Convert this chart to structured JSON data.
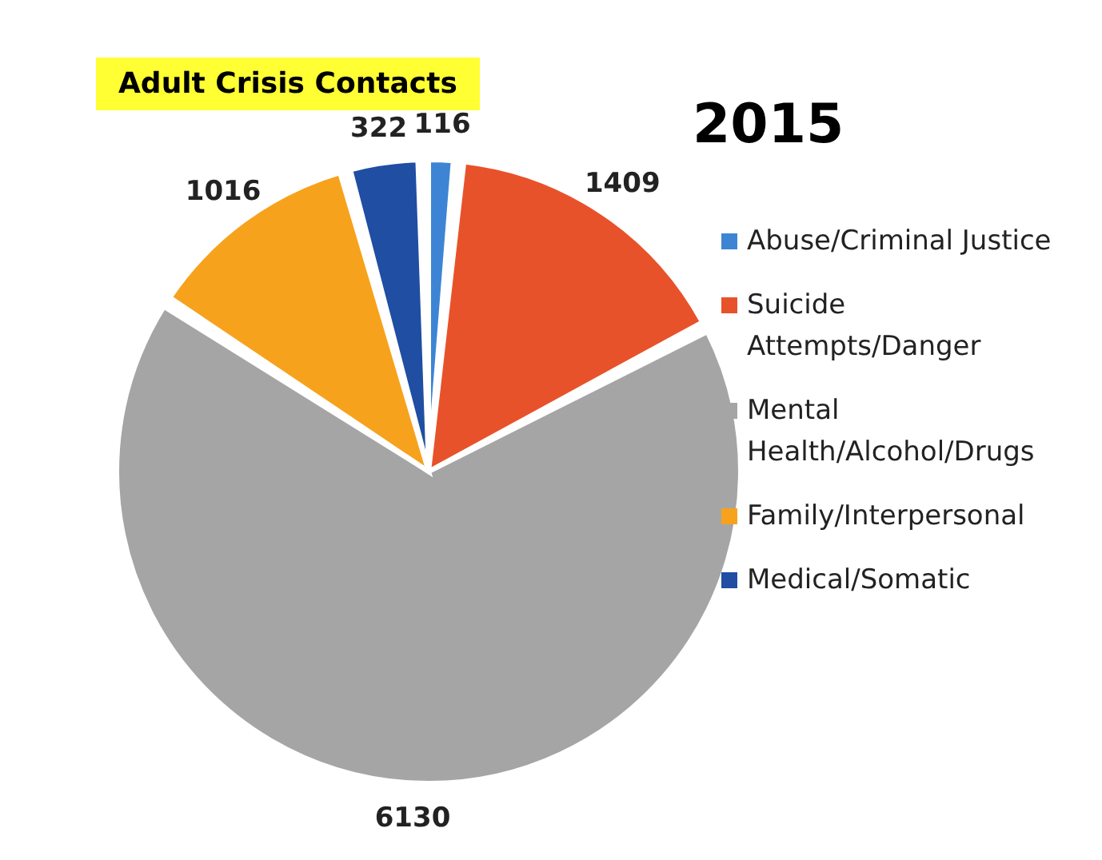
{
  "chart_data": {
    "type": "pie",
    "title": "Adult Crisis Contacts",
    "subtitle": "2015",
    "categories": [
      "Abuse/Criminal Justice",
      "Suicide Attempts/Danger",
      "Mental Health/Alcohol/Drugs",
      "Family/Interpersonal",
      "Medical/Somatic"
    ],
    "values": [
      116,
      1409,
      6130,
      1016,
      322
    ],
    "colors": [
      "#3d85d4",
      "#e8522a",
      "#a5a5a5",
      "#f7a21c",
      "#1f4ea3"
    ],
    "data_labels": true,
    "legend": "right"
  }
}
